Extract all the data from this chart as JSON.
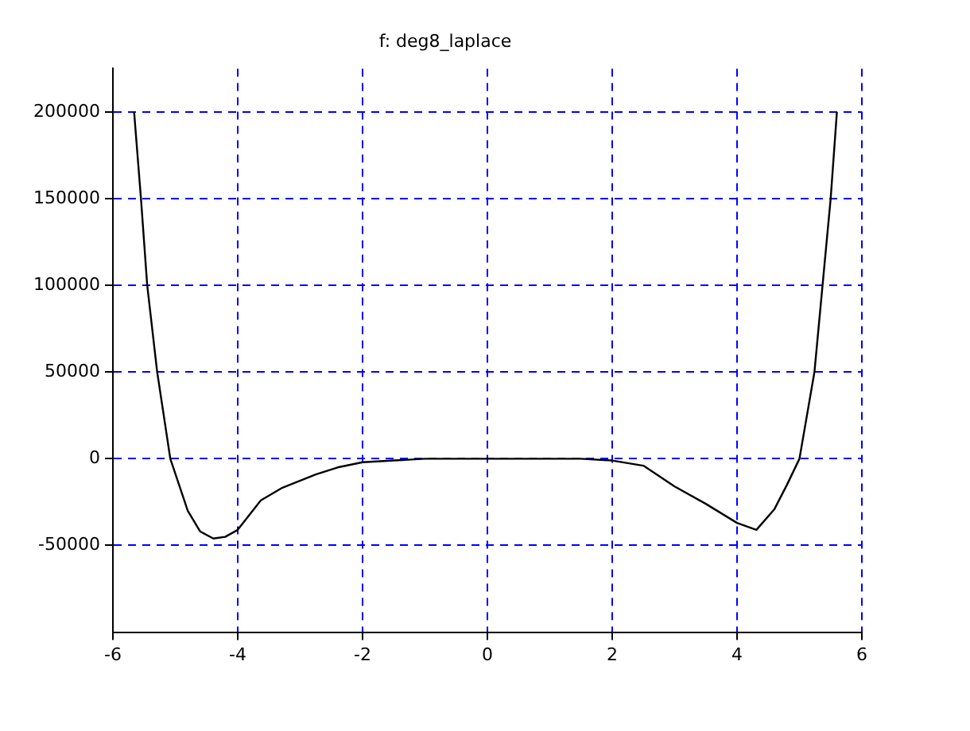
{
  "chart_data": {
    "type": "line",
    "title": "f: deg8_laplace",
    "series": [
      {
        "color": "#000000",
        "x": [
          -5.66,
          -5.55,
          -5.45,
          -5.29,
          -5.08,
          -4.8,
          -4.6,
          -4.39,
          -4.2,
          -4,
          -3.63,
          -3.3,
          -2.75,
          -2.4,
          -2,
          -1.5,
          -1,
          0,
          1,
          1.5,
          2,
          2.5,
          3,
          3.5,
          4,
          4.31,
          4.6,
          4.8,
          5,
          5.24,
          5.37,
          5.5,
          5.6
        ],
        "values": [
          200000,
          150000,
          100000,
          50000,
          0,
          -30000,
          -42000,
          -46000,
          -45000,
          -41000,
          -24000,
          -17000,
          -9000,
          -5000,
          -2000,
          -1000,
          0,
          0,
          0,
          0,
          -1000,
          -4000,
          -16000,
          -26000,
          -37000,
          -41000,
          -29000,
          -15000,
          0,
          50000,
          100000,
          150000,
          200000
        ]
      }
    ],
    "xlim": [
      -6,
      6
    ],
    "xticks": [
      -6,
      -4,
      -2,
      0,
      2,
      4,
      6
    ],
    "ylim": [
      -100000,
      225000
    ],
    "yticks": [
      -50000,
      0,
      50000,
      100000,
      150000,
      200000
    ],
    "grid": true,
    "marker": "none",
    "line_style": "solid",
    "legend": false
  }
}
